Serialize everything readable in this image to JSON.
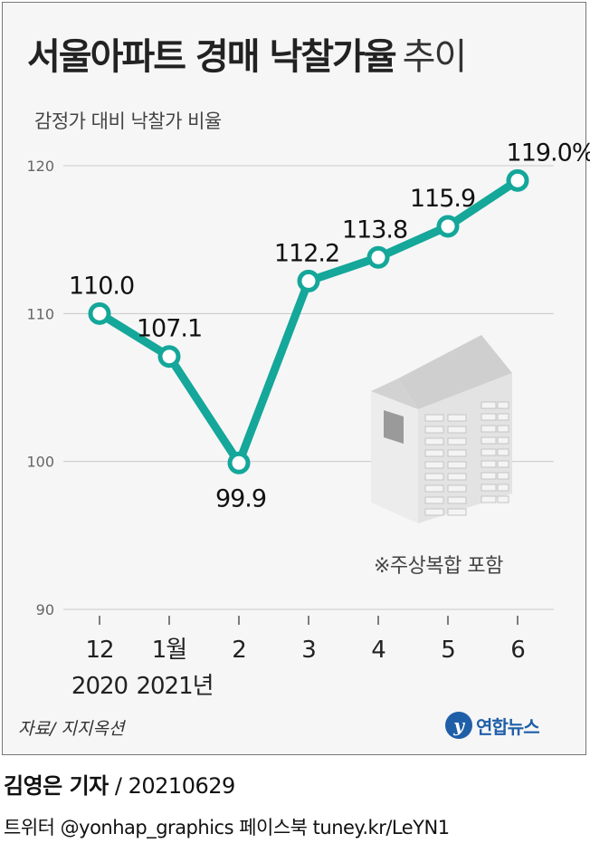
{
  "chart_data": {
    "type": "line",
    "categories": [
      "12",
      "1월",
      "2",
      "3",
      "4",
      "5",
      "6"
    ],
    "year_labels": [
      "2020",
      "2021년"
    ],
    "values": [
      110.0,
      107.1,
      99.9,
      112.2,
      113.8,
      115.9,
      119.0
    ],
    "data_labels": [
      "110.0",
      "107.1",
      "99.9",
      "112.2",
      "113.8",
      "115.9",
      "119.0"
    ],
    "last_unit": "%",
    "title": "서울아파트 경매 낙찰가율",
    "title_suffix": "추이",
    "subtitle": "감정가 대비 낙찰가 비율",
    "yticks": [
      90,
      100,
      110,
      120
    ],
    "ylim": [
      90,
      121
    ],
    "grid": true,
    "legend": "none",
    "note": "※주상복합 포함",
    "source": "자료/ 지지옥션",
    "line_color": "#14a79a"
  },
  "footer": {
    "brand": "연합뉴스",
    "reporter": "김영은 기자",
    "date": "20210629",
    "social": "트위터 @yonhap_graphics  페이스북 tuney.kr/LeYN1"
  }
}
